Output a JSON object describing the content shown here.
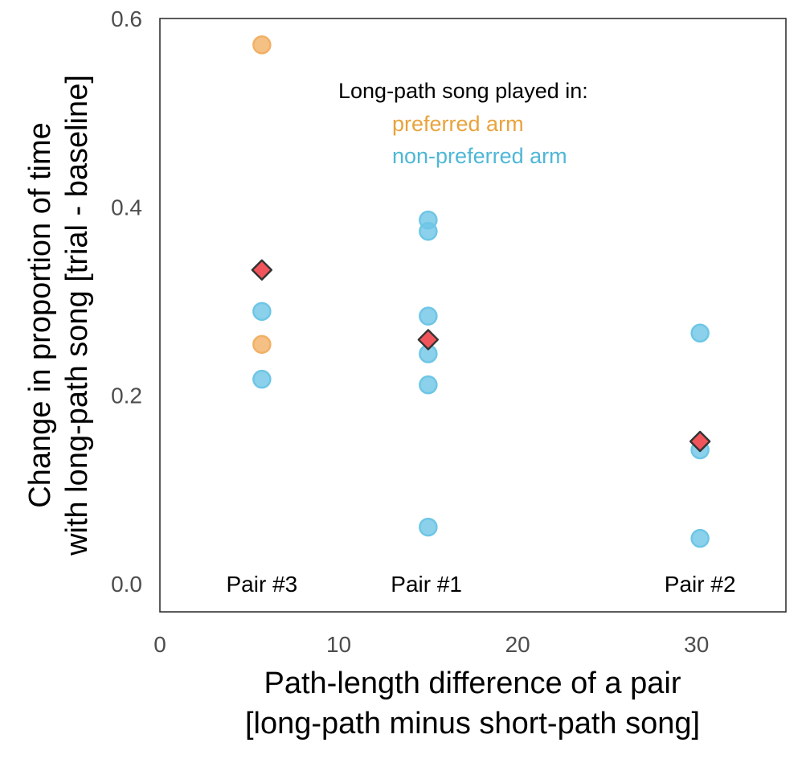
{
  "chart_data": {
    "type": "scatter",
    "xlabel_lines": [
      "Path-length difference of a pair",
      "[long-path minus short-path song]"
    ],
    "ylabel_lines": [
      "Change in proportion of time",
      "with long-path song [trial - baseline]"
    ],
    "xlim": [
      0,
      35
    ],
    "ylim": [
      -0.03,
      0.6
    ],
    "x_ticks": [
      0,
      10,
      20,
      30
    ],
    "x_tick_labels": [
      "0",
      "10",
      "20",
      "30"
    ],
    "y_ticks": [
      0.0,
      0.2,
      0.4,
      0.6
    ],
    "y_tick_labels": [
      "0.0",
      "0.2",
      "0.4",
      "0.6"
    ],
    "grid": false,
    "legend": {
      "title": "Long-path song played in:",
      "entries": [
        {
          "label": "preferred arm",
          "color": "#E8A33D"
        },
        {
          "label": "non-preferred arm",
          "color": "#4FB7D6"
        }
      ]
    },
    "series": [
      {
        "key": "preferred",
        "color": "#F2B065",
        "points": [
          {
            "x": 5.7,
            "y": 0.572
          },
          {
            "x": 5.7,
            "y": 0.254
          }
        ]
      },
      {
        "key": "non-preferred",
        "color": "#6EC6E6",
        "points": [
          {
            "x": 5.7,
            "y": 0.289
          },
          {
            "x": 5.7,
            "y": 0.217
          },
          {
            "x": 15.0,
            "y": 0.386
          },
          {
            "x": 15.0,
            "y": 0.374
          },
          {
            "x": 15.0,
            "y": 0.284
          },
          {
            "x": 15.0,
            "y": 0.244
          },
          {
            "x": 15.0,
            "y": 0.211
          },
          {
            "x": 15.0,
            "y": 0.06
          },
          {
            "x": 30.2,
            "y": 0.266
          },
          {
            "x": 30.2,
            "y": 0.142
          },
          {
            "x": 30.2,
            "y": 0.048
          }
        ]
      }
    ],
    "means": {
      "color": "#F0555B",
      "edge_color": "#333333",
      "points": [
        {
          "x": 5.7,
          "y": 0.333
        },
        {
          "x": 15.0,
          "y": 0.259
        },
        {
          "x": 30.2,
          "y": 0.151
        }
      ]
    },
    "annotations": [
      {
        "text": "Pair #3",
        "x": 5.7,
        "y": 0.0
      },
      {
        "text": "Pair #1",
        "x": 14.9,
        "y": 0.0
      },
      {
        "text": "Pair #2",
        "x": 30.2,
        "y": 0.0
      }
    ]
  }
}
